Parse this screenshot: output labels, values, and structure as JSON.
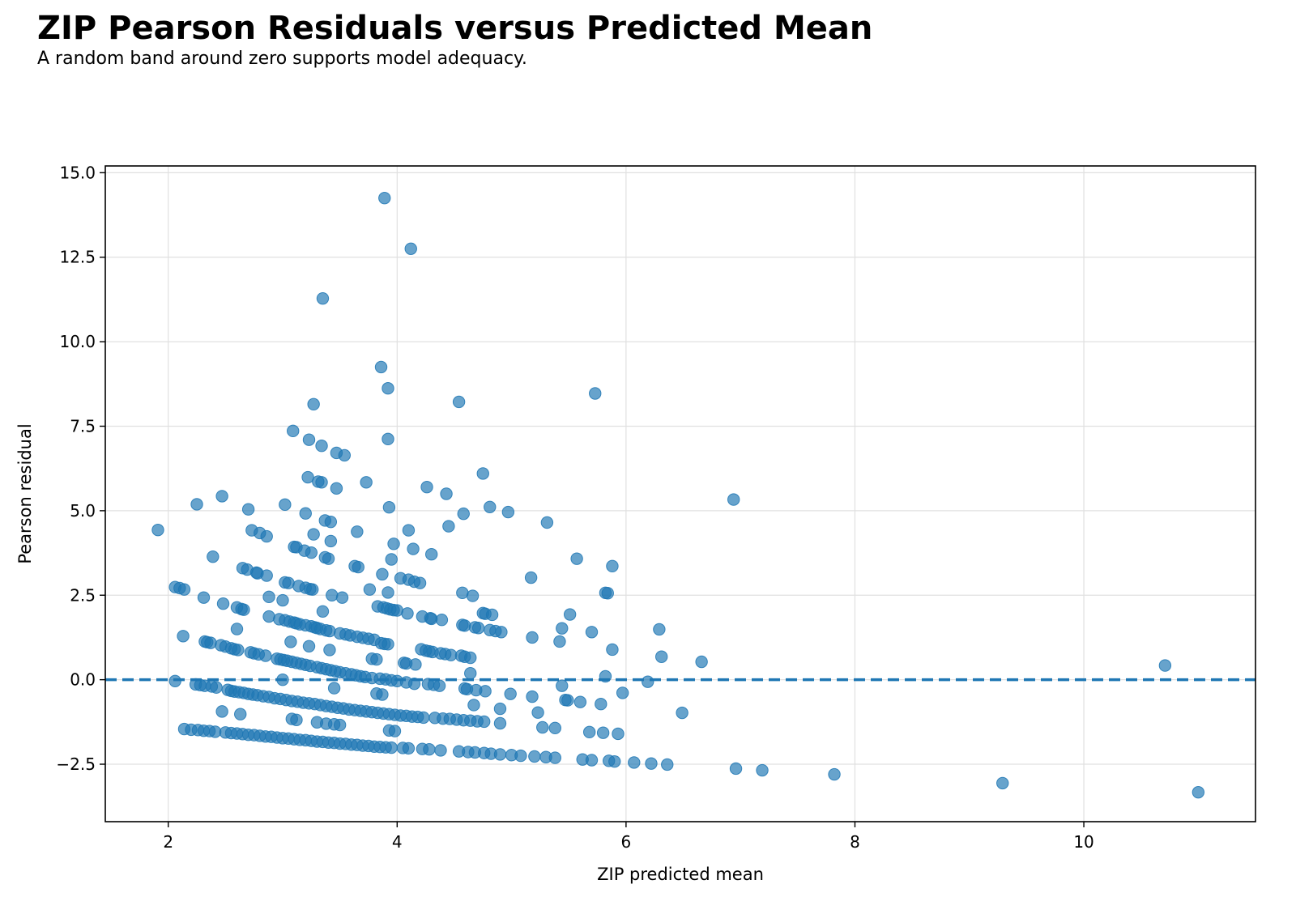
{
  "header": {
    "title": "ZIP Pearson Residuals versus Predicted Mean",
    "subtitle": "A random band around zero supports model adequacy."
  },
  "chart_data": {
    "type": "scatter",
    "title": "ZIP Pearson Residuals versus Predicted Mean",
    "subtitle": "A random band around zero supports model adequacy.",
    "xlabel": "ZIP predicted mean",
    "ylabel": "Pearson residual",
    "xlim": [
      1.45,
      11.5
    ],
    "ylim": [
      -4.2,
      15.2
    ],
    "xticks": [
      2,
      4,
      6,
      8,
      10
    ],
    "yticks": [
      -2.5,
      0.0,
      2.5,
      5.0,
      7.5,
      10.0,
      12.5,
      15.0
    ],
    "xtick_labels": [
      "2",
      "4",
      "6",
      "8",
      "10"
    ],
    "ytick_labels": [
      "−2.5",
      "0.0",
      "2.5",
      "5.0",
      "7.5",
      "10.0",
      "12.5",
      "15.0"
    ],
    "grid": true,
    "reference_line": {
      "y": 0,
      "style": "dashed"
    },
    "colors": {
      "points": "#1f77b4",
      "reference": "#1f77b4",
      "grid": "#e0e0e0"
    },
    "points": [
      [
        3.89,
        14.25
      ],
      [
        4.12,
        12.75
      ],
      [
        3.35,
        11.28
      ],
      [
        3.86,
        9.25
      ],
      [
        3.92,
        8.62
      ],
      [
        3.27,
        8.15
      ],
      [
        4.54,
        8.22
      ],
      [
        5.73,
        8.47
      ],
      [
        3.92,
        7.12
      ],
      [
        3.09,
        7.36
      ],
      [
        3.23,
        7.1
      ],
      [
        3.34,
        6.92
      ],
      [
        3.47,
        6.71
      ],
      [
        3.54,
        6.64
      ],
      [
        4.75,
        6.1
      ],
      [
        3.22,
        5.99
      ],
      [
        3.31,
        5.86
      ],
      [
        3.34,
        5.84
      ],
      [
        3.73,
        5.84
      ],
      [
        3.47,
        5.66
      ],
      [
        4.26,
        5.7
      ],
      [
        2.47,
        5.43
      ],
      [
        4.43,
        5.5
      ],
      [
        6.94,
        5.33
      ],
      [
        2.25,
        5.19
      ],
      [
        3.02,
        5.18
      ],
      [
        2.7,
        5.04
      ],
      [
        3.93,
        5.1
      ],
      [
        4.81,
        5.11
      ],
      [
        4.97,
        4.96
      ],
      [
        3.2,
        4.92
      ],
      [
        4.58,
        4.91
      ],
      [
        3.37,
        4.71
      ],
      [
        3.42,
        4.67
      ],
      [
        5.31,
        4.65
      ],
      [
        4.45,
        4.54
      ],
      [
        1.91,
        4.43
      ],
      [
        2.73,
        4.42
      ],
      [
        2.8,
        4.34
      ],
      [
        2.86,
        4.24
      ],
      [
        3.65,
        4.38
      ],
      [
        3.27,
        4.3
      ],
      [
        4.1,
        4.42
      ],
      [
        3.42,
        4.1
      ],
      [
        3.97,
        4.02
      ],
      [
        3.1,
        3.93
      ],
      [
        3.12,
        3.92
      ],
      [
        3.19,
        3.82
      ],
      [
        3.25,
        3.76
      ],
      [
        4.14,
        3.87
      ],
      [
        4.3,
        3.71
      ],
      [
        2.39,
        3.64
      ],
      [
        3.37,
        3.62
      ],
      [
        3.4,
        3.58
      ],
      [
        3.95,
        3.56
      ],
      [
        5.57,
        3.58
      ],
      [
        5.88,
        3.36
      ],
      [
        3.63,
        3.36
      ],
      [
        3.66,
        3.33
      ],
      [
        2.65,
        3.3
      ],
      [
        2.69,
        3.26
      ],
      [
        2.77,
        3.17
      ],
      [
        2.78,
        3.15
      ],
      [
        2.86,
        3.08
      ],
      [
        3.87,
        3.12
      ],
      [
        4.03,
        3.0
      ],
      [
        4.1,
        2.96
      ],
      [
        4.15,
        2.9
      ],
      [
        4.2,
        2.86
      ],
      [
        5.17,
        3.02
      ],
      [
        3.02,
        2.88
      ],
      [
        3.05,
        2.86
      ],
      [
        3.14,
        2.77
      ],
      [
        3.2,
        2.72
      ],
      [
        3.24,
        2.68
      ],
      [
        3.26,
        2.67
      ],
      [
        3.76,
        2.67
      ],
      [
        2.06,
        2.74
      ],
      [
        2.1,
        2.71
      ],
      [
        2.14,
        2.67
      ],
      [
        2.31,
        2.43
      ],
      [
        2.88,
        2.45
      ],
      [
        3.0,
        2.35
      ],
      [
        3.43,
        2.5
      ],
      [
        3.52,
        2.43
      ],
      [
        3.92,
        2.58
      ],
      [
        4.57,
        2.57
      ],
      [
        4.66,
        2.48
      ],
      [
        5.82,
        2.57
      ],
      [
        5.84,
        2.56
      ],
      [
        2.48,
        2.25
      ],
      [
        2.6,
        2.14
      ],
      [
        2.64,
        2.09
      ],
      [
        2.66,
        2.07
      ],
      [
        3.83,
        2.17
      ],
      [
        3.88,
        2.14
      ],
      [
        3.91,
        2.11
      ],
      [
        3.94,
        2.08
      ],
      [
        3.97,
        2.06
      ],
      [
        4.0,
        2.05
      ],
      [
        4.09,
        1.96
      ],
      [
        4.22,
        1.87
      ],
      [
        4.29,
        1.82
      ],
      [
        4.3,
        1.8
      ],
      [
        4.39,
        1.77
      ],
      [
        3.35,
        2.02
      ],
      [
        4.75,
        1.97
      ],
      [
        4.77,
        1.95
      ],
      [
        4.83,
        1.92
      ],
      [
        5.51,
        1.93
      ],
      [
        2.88,
        1.87
      ],
      [
        2.97,
        1.79
      ],
      [
        3.02,
        1.76
      ],
      [
        3.06,
        1.72
      ],
      [
        3.1,
        1.69
      ],
      [
        3.12,
        1.67
      ],
      [
        3.15,
        1.64
      ],
      [
        3.2,
        1.61
      ],
      [
        3.25,
        1.58
      ],
      [
        3.28,
        1.55
      ],
      [
        3.3,
        1.53
      ],
      [
        3.33,
        1.5
      ],
      [
        3.38,
        1.46
      ],
      [
        3.41,
        1.44
      ],
      [
        3.5,
        1.37
      ],
      [
        3.55,
        1.34
      ],
      [
        3.59,
        1.31
      ],
      [
        3.65,
        1.27
      ],
      [
        3.7,
        1.24
      ],
      [
        3.75,
        1.21
      ],
      [
        3.8,
        1.18
      ],
      [
        4.57,
        1.62
      ],
      [
        4.59,
        1.6
      ],
      [
        4.68,
        1.55
      ],
      [
        4.71,
        1.53
      ],
      [
        4.81,
        1.47
      ],
      [
        4.86,
        1.44
      ],
      [
        4.91,
        1.41
      ],
      [
        5.44,
        1.52
      ],
      [
        5.7,
        1.41
      ],
      [
        6.29,
        1.49
      ],
      [
        2.6,
        1.5
      ],
      [
        2.13,
        1.29
      ],
      [
        5.18,
        1.25
      ],
      [
        2.32,
        1.13
      ],
      [
        2.34,
        1.11
      ],
      [
        2.37,
        1.09
      ],
      [
        3.07,
        1.12
      ],
      [
        3.86,
        1.08
      ],
      [
        3.89,
        1.06
      ],
      [
        3.92,
        1.05
      ],
      [
        5.42,
        1.13
      ],
      [
        2.46,
        1.02
      ],
      [
        2.5,
        0.98
      ],
      [
        2.55,
        0.93
      ],
      [
        2.58,
        0.9
      ],
      [
        2.61,
        0.88
      ],
      [
        3.23,
        0.99
      ],
      [
        3.41,
        0.88
      ],
      [
        4.21,
        0.9
      ],
      [
        4.25,
        0.86
      ],
      [
        4.28,
        0.84
      ],
      [
        4.31,
        0.82
      ],
      [
        4.38,
        0.78
      ],
      [
        4.42,
        0.76
      ],
      [
        4.47,
        0.73
      ],
      [
        4.56,
        0.71
      ],
      [
        4.59,
        0.68
      ],
      [
        4.64,
        0.65
      ],
      [
        5.88,
        0.89
      ],
      [
        6.31,
        0.68
      ],
      [
        2.72,
        0.81
      ],
      [
        2.75,
        0.78
      ],
      [
        2.79,
        0.75
      ],
      [
        2.85,
        0.71
      ],
      [
        3.78,
        0.62
      ],
      [
        3.82,
        0.6
      ],
      [
        2.95,
        0.62
      ],
      [
        2.98,
        0.6
      ],
      [
        3.01,
        0.58
      ],
      [
        3.04,
        0.56
      ],
      [
        3.08,
        0.53
      ],
      [
        3.12,
        0.5
      ],
      [
        3.16,
        0.47
      ],
      [
        3.2,
        0.44
      ],
      [
        3.24,
        0.41
      ],
      [
        3.3,
        0.37
      ],
      [
        3.34,
        0.34
      ],
      [
        3.38,
        0.31
      ],
      [
        3.42,
        0.28
      ],
      [
        3.46,
        0.25
      ],
      [
        3.5,
        0.22
      ],
      [
        3.55,
        0.19
      ],
      [
        3.6,
        0.16
      ],
      [
        3.64,
        0.13
      ],
      [
        3.68,
        0.1
      ],
      [
        3.72,
        0.08
      ],
      [
        4.06,
        0.5
      ],
      [
        4.08,
        0.48
      ],
      [
        4.16,
        0.45
      ],
      [
        6.66,
        0.53
      ],
      [
        10.71,
        0.42
      ],
      [
        4.64,
        0.19
      ],
      [
        3.78,
        0.05
      ],
      [
        3.85,
        0.03
      ],
      [
        3.9,
        0.01
      ],
      [
        3.95,
        -0.02
      ],
      [
        4.0,
        -0.04
      ],
      [
        4.08,
        -0.08
      ],
      [
        4.15,
        -0.12
      ],
      [
        5.82,
        0.1
      ],
      [
        2.06,
        -0.04
      ],
      [
        3.0,
        0.0
      ],
      [
        6.19,
        -0.06
      ],
      [
        4.27,
        -0.13
      ],
      [
        4.32,
        -0.15
      ],
      [
        4.37,
        -0.18
      ],
      [
        2.24,
        -0.14
      ],
      [
        2.28,
        -0.16
      ],
      [
        2.32,
        -0.18
      ],
      [
        2.38,
        -0.2
      ],
      [
        2.42,
        -0.23
      ],
      [
        2.52,
        -0.3
      ],
      [
        2.55,
        -0.33
      ],
      [
        2.58,
        -0.35
      ],
      [
        2.62,
        -0.37
      ],
      [
        2.66,
        -0.39
      ],
      [
        2.7,
        -0.42
      ],
      [
        2.74,
        -0.44
      ],
      [
        2.78,
        -0.46
      ],
      [
        2.83,
        -0.49
      ],
      [
        2.88,
        -0.51
      ],
      [
        3.45,
        -0.25
      ],
      [
        4.59,
        -0.26
      ],
      [
        4.61,
        -0.28
      ],
      [
        4.69,
        -0.31
      ],
      [
        4.77,
        -0.34
      ],
      [
        5.44,
        -0.18
      ],
      [
        5.97,
        -0.39
      ],
      [
        3.82,
        -0.41
      ],
      [
        3.87,
        -0.44
      ],
      [
        4.99,
        -0.42
      ],
      [
        5.18,
        -0.5
      ],
      [
        5.47,
        -0.6
      ],
      [
        5.49,
        -0.61
      ],
      [
        5.6,
        -0.66
      ],
      [
        5.78,
        -0.72
      ],
      [
        4.67,
        -0.75
      ],
      [
        2.93,
        -0.55
      ],
      [
        2.98,
        -0.57
      ],
      [
        3.03,
        -0.6
      ],
      [
        3.08,
        -0.63
      ],
      [
        3.13,
        -0.65
      ],
      [
        3.18,
        -0.68
      ],
      [
        3.23,
        -0.7
      ],
      [
        3.28,
        -0.72
      ],
      [
        3.33,
        -0.75
      ],
      [
        3.38,
        -0.78
      ],
      [
        3.43,
        -0.8
      ],
      [
        3.48,
        -0.83
      ],
      [
        3.53,
        -0.85
      ],
      [
        3.58,
        -0.88
      ],
      [
        3.63,
        -0.9
      ],
      [
        3.68,
        -0.92
      ],
      [
        3.73,
        -0.94
      ],
      [
        3.78,
        -0.96
      ],
      [
        3.83,
        -0.98
      ],
      [
        3.88,
        -1.0
      ],
      [
        3.93,
        -1.02
      ],
      [
        3.98,
        -1.04
      ],
      [
        4.03,
        -1.06
      ],
      [
        4.08,
        -1.07
      ],
      [
        4.13,
        -1.09
      ],
      [
        4.18,
        -1.1
      ],
      [
        4.23,
        -1.12
      ],
      [
        4.33,
        -1.13
      ],
      [
        4.4,
        -1.15
      ],
      [
        4.46,
        -1.16
      ],
      [
        4.52,
        -1.18
      ],
      [
        4.58,
        -1.2
      ],
      [
        4.64,
        -1.21
      ],
      [
        4.7,
        -1.23
      ],
      [
        4.76,
        -1.24
      ],
      [
        4.9,
        -0.86
      ],
      [
        5.23,
        -0.97
      ],
      [
        6.49,
        -0.98
      ],
      [
        2.47,
        -0.94
      ],
      [
        2.63,
        -1.02
      ],
      [
        3.08,
        -1.16
      ],
      [
        3.12,
        -1.19
      ],
      [
        3.3,
        -1.26
      ],
      [
        3.38,
        -1.3
      ],
      [
        3.45,
        -1.32
      ],
      [
        3.5,
        -1.34
      ],
      [
        4.9,
        -1.29
      ],
      [
        5.27,
        -1.41
      ],
      [
        5.38,
        -1.43
      ],
      [
        5.68,
        -1.55
      ],
      [
        5.8,
        -1.57
      ],
      [
        5.93,
        -1.6
      ],
      [
        3.93,
        -1.5
      ],
      [
        3.98,
        -1.52
      ],
      [
        2.14,
        -1.46
      ],
      [
        2.2,
        -1.48
      ],
      [
        2.26,
        -1.49
      ],
      [
        2.31,
        -1.51
      ],
      [
        2.36,
        -1.52
      ],
      [
        2.41,
        -1.54
      ],
      [
        2.5,
        -1.56
      ],
      [
        2.55,
        -1.58
      ],
      [
        2.6,
        -1.59
      ],
      [
        2.65,
        -1.61
      ],
      [
        2.7,
        -1.63
      ],
      [
        2.75,
        -1.64
      ],
      [
        2.8,
        -1.66
      ],
      [
        2.85,
        -1.68
      ],
      [
        2.9,
        -1.69
      ],
      [
        2.95,
        -1.71
      ],
      [
        3.0,
        -1.73
      ],
      [
        3.05,
        -1.74
      ],
      [
        3.1,
        -1.76
      ],
      [
        3.15,
        -1.78
      ],
      [
        3.2,
        -1.79
      ],
      [
        3.25,
        -1.81
      ],
      [
        3.3,
        -1.83
      ],
      [
        3.35,
        -1.84
      ],
      [
        3.4,
        -1.86
      ],
      [
        3.45,
        -1.87
      ],
      [
        3.5,
        -1.89
      ],
      [
        3.55,
        -1.9
      ],
      [
        3.6,
        -1.92
      ],
      [
        3.65,
        -1.93
      ],
      [
        3.7,
        -1.95
      ],
      [
        3.75,
        -1.96
      ],
      [
        3.8,
        -1.98
      ],
      [
        3.85,
        -1.99
      ],
      [
        3.9,
        -2.0
      ],
      [
        3.95,
        -2.01
      ],
      [
        4.05,
        -2.02
      ],
      [
        4.1,
        -2.03
      ],
      [
        4.22,
        -2.05
      ],
      [
        4.28,
        -2.06
      ],
      [
        4.38,
        -2.09
      ],
      [
        4.54,
        -2.12
      ],
      [
        4.62,
        -2.14
      ],
      [
        4.68,
        -2.15
      ],
      [
        4.76,
        -2.17
      ],
      [
        4.82,
        -2.19
      ],
      [
        4.9,
        -2.21
      ],
      [
        5.0,
        -2.23
      ],
      [
        5.08,
        -2.25
      ],
      [
        5.2,
        -2.27
      ],
      [
        5.3,
        -2.29
      ],
      [
        5.38,
        -2.31
      ],
      [
        5.62,
        -2.36
      ],
      [
        5.7,
        -2.38
      ],
      [
        5.85,
        -2.4
      ],
      [
        5.9,
        -2.42
      ],
      [
        6.07,
        -2.45
      ],
      [
        6.22,
        -2.48
      ],
      [
        6.36,
        -2.51
      ],
      [
        6.96,
        -2.63
      ],
      [
        7.19,
        -2.68
      ],
      [
        7.82,
        -2.8
      ],
      [
        9.29,
        -3.06
      ],
      [
        11.0,
        -3.33
      ]
    ]
  }
}
